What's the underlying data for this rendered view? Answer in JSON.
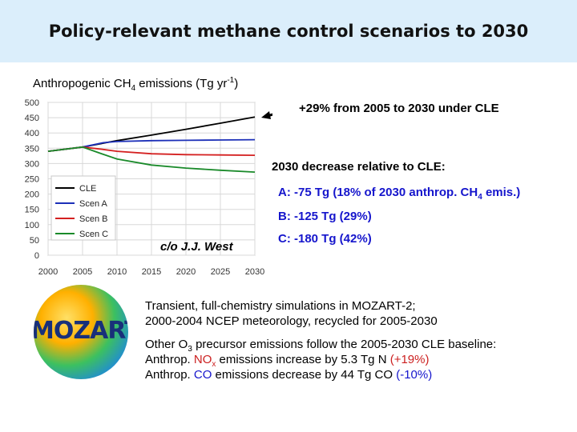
{
  "title": "Policy-relevant methane control scenarios to 2030",
  "ylabel": {
    "pre": "Anthropogenic CH",
    "sub": "4",
    "post": " emissions (Tg yr",
    "sup": "-1",
    "end": ")"
  },
  "annotations": {
    "cle_change": "+29% from 2005 to 2030 under CLE",
    "decrease_heading": "2030 decrease relative to CLE:",
    "a_pre": "A: -75 Tg (18% of 2030 anthrop. CH",
    "a_sub": "4",
    "a_post": " emis.)",
    "b": "B: -125 Tg  (29%)",
    "c": "C: -180 Tg  (42%)",
    "credit": "c/o J.J. West"
  },
  "logo_text": "MOZART",
  "text_block": {
    "line1": "Transient, full-chemistry simulations in MOZART-2;",
    "line2": "2000-2004 NCEP meteorology, recycled for 2005-2030",
    "line3_pre": "Other O",
    "line3_sub": "3",
    "line3_post": " precursor emissions follow the 2005-2030 CLE baseline:",
    "line4_pre": "Anthrop. ",
    "line4_nox": "NO",
    "line4_nox_sub": "x",
    "line4_mid": " emissions increase by 5.3 Tg N ",
    "line4_pct": "(+19%)",
    "line5_pre": "Anthrop. ",
    "line5_co": "CO",
    "line5_mid": " emissions decrease by 44 Tg CO ",
    "line5_pct": "(-10%)"
  },
  "colors": {
    "CLE": "#000000",
    "Scen A": "#1c2fb8",
    "Scen B": "#d42020",
    "Scen C": "#1a8a2a",
    "arrow": "#000000"
  },
  "chart_data": {
    "type": "line",
    "xlim": [
      2000,
      2030
    ],
    "ylim": [
      0,
      500
    ],
    "xticks": [
      2000,
      2005,
      2010,
      2015,
      2020,
      2025,
      2030
    ],
    "yticks": [
      0,
      50,
      100,
      150,
      200,
      250,
      300,
      350,
      400,
      450,
      500
    ],
    "grid": true,
    "legend": "bottom-left",
    "series": [
      {
        "name": "CLE",
        "x": [
          2000,
          2005,
          2010,
          2015,
          2020,
          2025,
          2030
        ],
        "values": [
          340,
          354,
          375,
          393,
          412,
          432,
          452
        ]
      },
      {
        "name": "Scen A",
        "x": [
          2000,
          2005,
          2008,
          2010,
          2015,
          2020,
          2025,
          2030
        ],
        "values": [
          340,
          354,
          368,
          372,
          375,
          376,
          377,
          378
        ]
      },
      {
        "name": "Scen B",
        "x": [
          2000,
          2005,
          2008,
          2010,
          2015,
          2020,
          2025,
          2030
        ],
        "values": [
          340,
          354,
          346,
          340,
          332,
          329,
          328,
          327
        ]
      },
      {
        "name": "Scen C",
        "x": [
          2000,
          2005,
          2008,
          2010,
          2015,
          2020,
          2025,
          2030
        ],
        "values": [
          340,
          354,
          330,
          315,
          295,
          285,
          278,
          272
        ]
      }
    ]
  }
}
